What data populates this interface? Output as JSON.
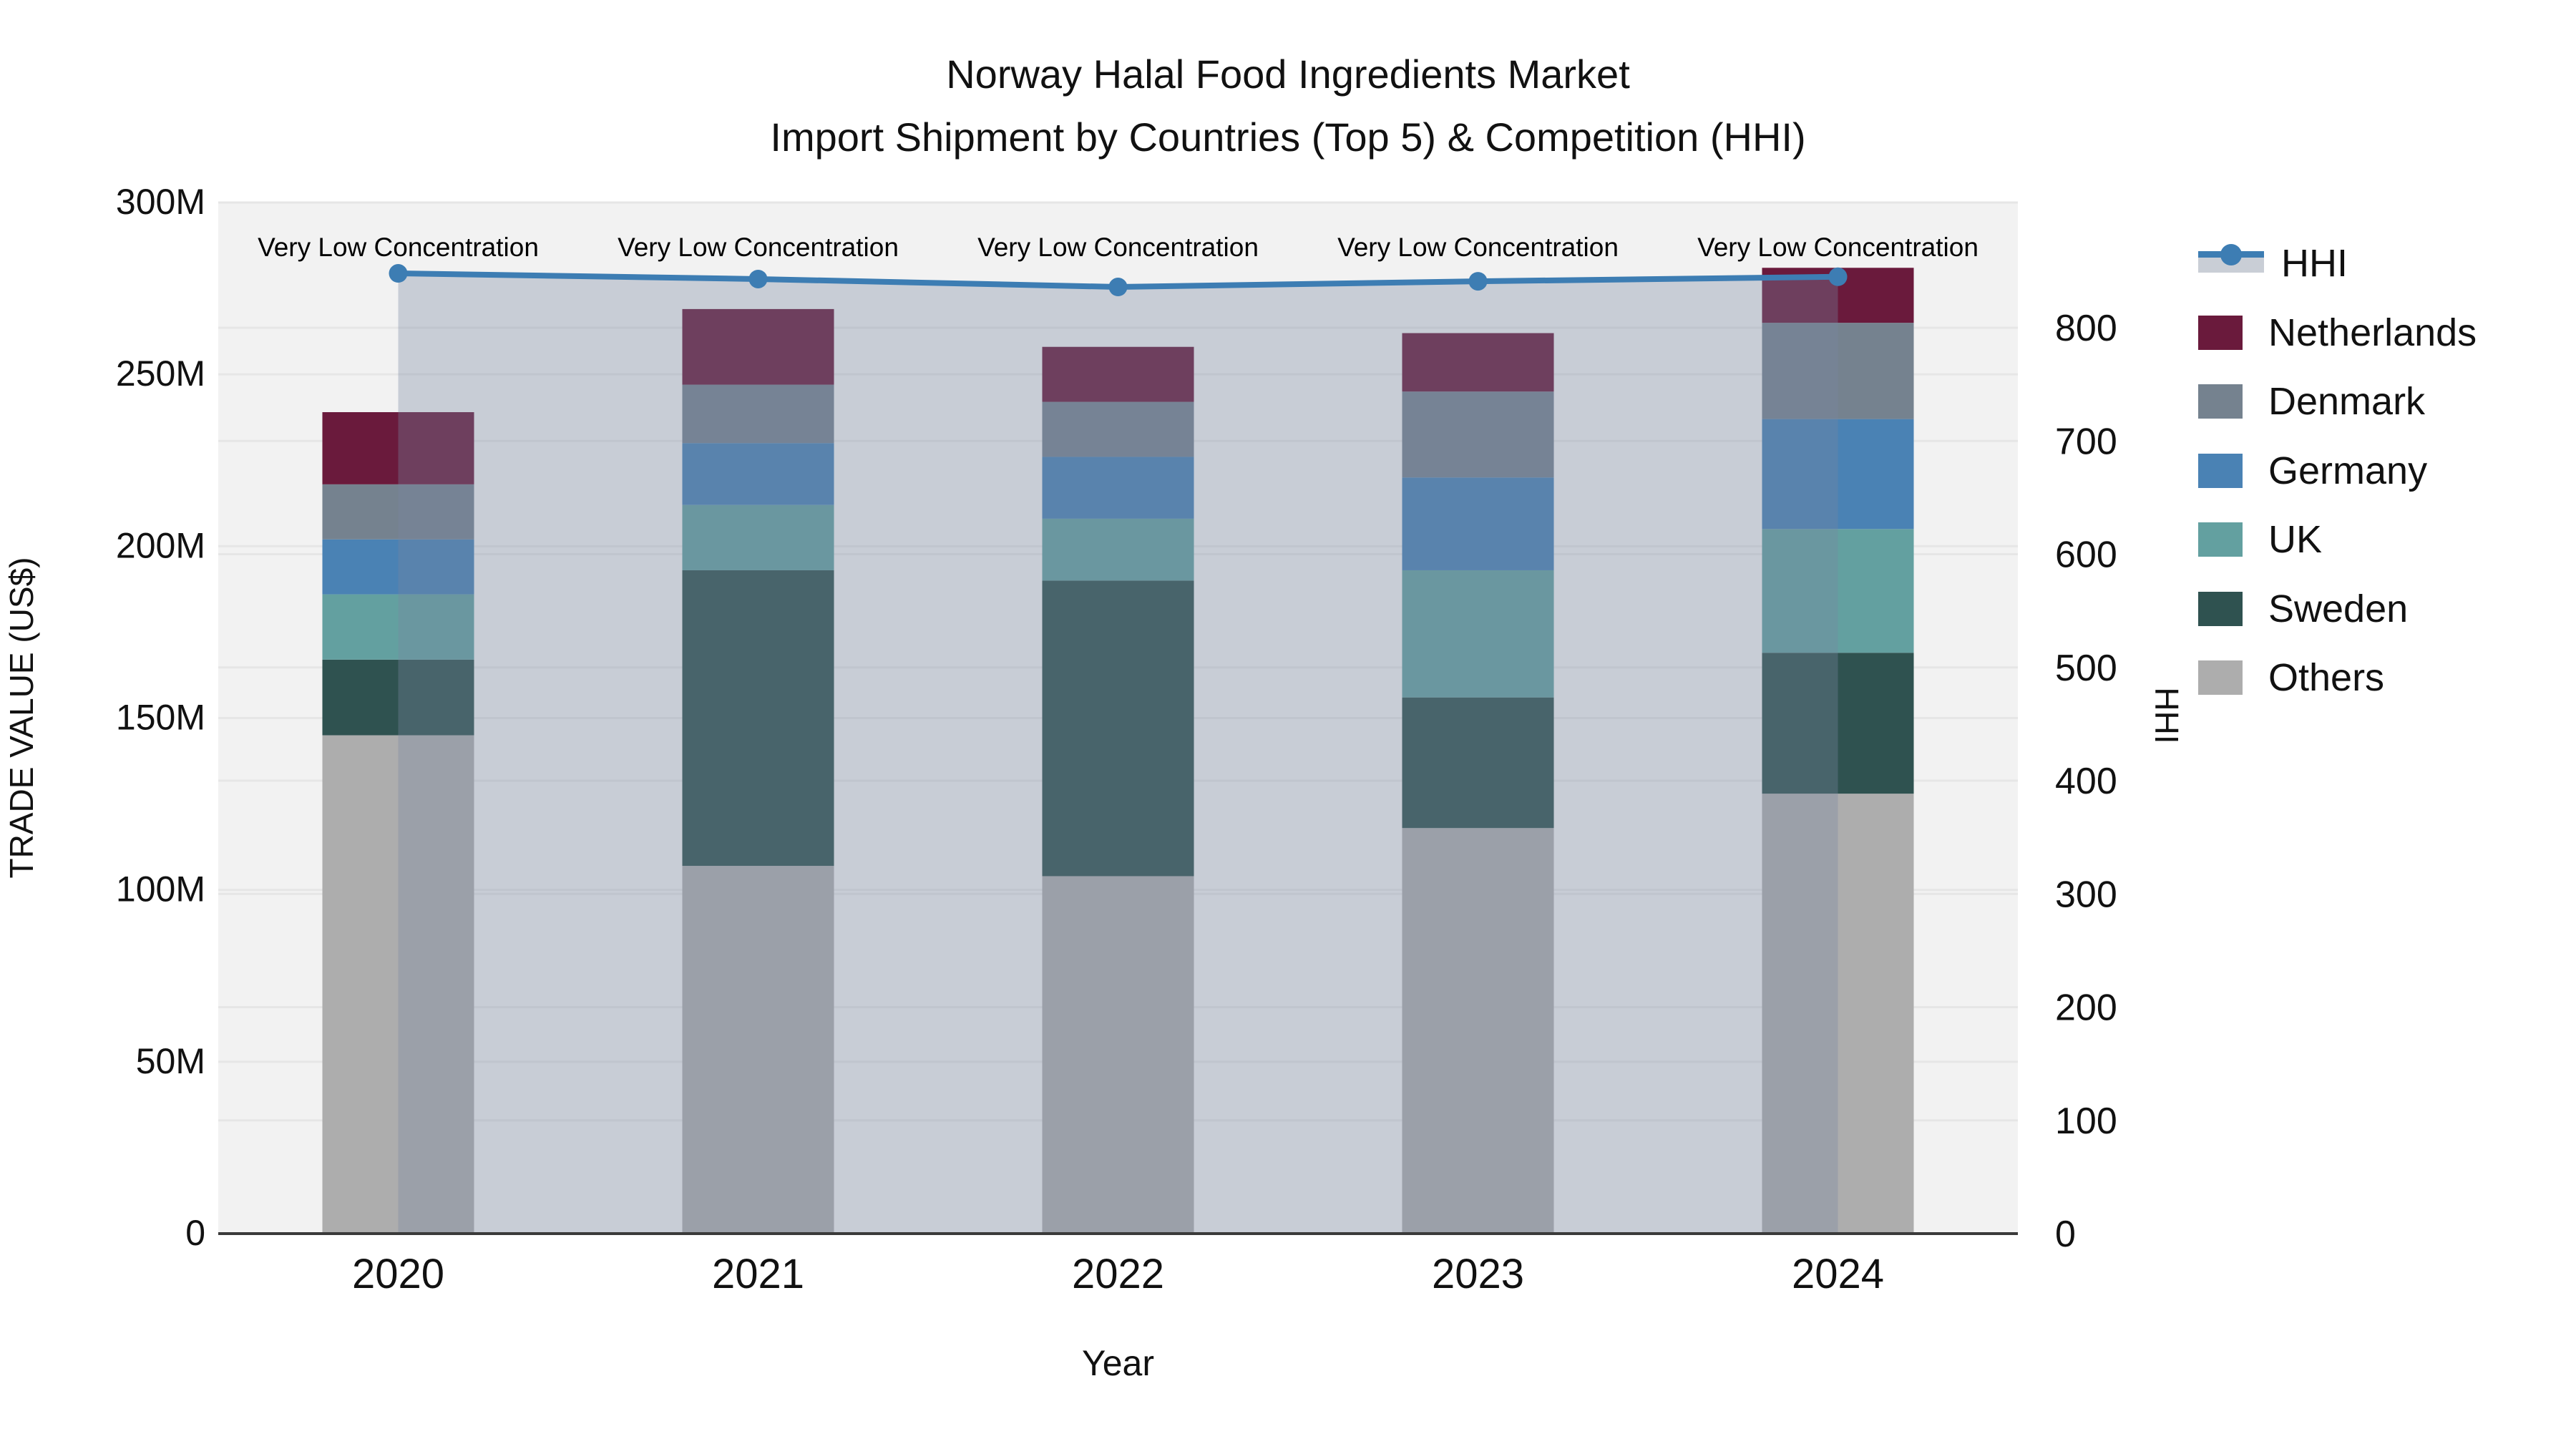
{
  "title": {
    "line1": "Norway Halal Food Ingredients Market",
    "line2": "Import Shipment by Countries (Top 5) & Competition (HHI)"
  },
  "annotation_text": "Very Low Concentration",
  "axes": {
    "x": {
      "label": "Year",
      "tick_labels": [
        "2020",
        "2021",
        "2022",
        "2023",
        "2024"
      ]
    },
    "y_left": {
      "label": "TRADE VALUE (US$)",
      "tick_labels": [
        "0",
        "50M",
        "100M",
        "150M",
        "200M",
        "250M",
        "300M"
      ],
      "tick_values": [
        0,
        50,
        100,
        150,
        200,
        250,
        300
      ],
      "max": 300
    },
    "y_right": {
      "label": "HHI",
      "tick_labels": [
        "0",
        "100",
        "200",
        "300",
        "400",
        "500",
        "600",
        "700",
        "800"
      ],
      "tick_values": [
        0,
        100,
        200,
        300,
        400,
        500,
        600,
        700,
        800
      ],
      "max": 800
    }
  },
  "legend": {
    "items": [
      {
        "label": "HHI",
        "swatch": "line"
      },
      {
        "label": "Netherlands",
        "swatch": "box",
        "color": "#6a1a3c"
      },
      {
        "label": "Denmark",
        "swatch": "box",
        "color": "#75828f"
      },
      {
        "label": "Germany",
        "swatch": "box",
        "color": "#4a82b4"
      },
      {
        "label": "UK",
        "swatch": "box",
        "color": "#63a0a0"
      },
      {
        "label": "Sweden",
        "swatch": "box",
        "color": "#2f5250"
      },
      {
        "label": "Others",
        "swatch": "box",
        "color": "#adadad"
      }
    ]
  },
  "chart_data": {
    "type": "bar",
    "subtype": "stacked-bars-with-line-area",
    "title": "Norway Halal Food Ingredients Market — Import Shipment by Countries (Top 5) & Competition (HHI)",
    "xlabel": "Year",
    "ylabel_left": "TRADE VALUE (US$)",
    "ylabel_right": "HHI",
    "categories": [
      "2020",
      "2021",
      "2022",
      "2023",
      "2024"
    ],
    "units": "millions US$",
    "ylim_left": [
      0,
      300
    ],
    "ylim_right_gridmax": 800,
    "grid": true,
    "legend_position": "right-outside",
    "stack_bottom_to_top": [
      "Others",
      "Sweden",
      "UK",
      "Germany",
      "Denmark",
      "Netherlands"
    ],
    "series": [
      {
        "name": "Netherlands",
        "type": "bar",
        "color": "#6a1a3c",
        "values": [
          21,
          22,
          16,
          17,
          16
        ]
      },
      {
        "name": "Denmark",
        "type": "bar",
        "color": "#75828f",
        "values": [
          16,
          17,
          16,
          25,
          28
        ]
      },
      {
        "name": "Germany",
        "type": "bar",
        "color": "#4a82b4",
        "values": [
          16,
          18,
          18,
          27,
          32
        ]
      },
      {
        "name": "UK",
        "type": "bar",
        "color": "#63a0a0",
        "values": [
          19,
          19,
          18,
          37,
          36
        ]
      },
      {
        "name": "Sweden",
        "type": "bar",
        "color": "#2f5250",
        "values": [
          22,
          86,
          86,
          38,
          41
        ]
      },
      {
        "name": "Others",
        "type": "bar",
        "color": "#adadad",
        "values": [
          145,
          107,
          104,
          118,
          128
        ]
      }
    ],
    "bar_totals": [
      239,
      269,
      258,
      262,
      281
    ],
    "line_series": {
      "name": "HHI",
      "type": "line",
      "axis": "right",
      "color": "#3d7db3",
      "area_fill": "rgba(120,135,160,0.34)",
      "values": [
        848,
        843,
        836,
        841,
        845
      ],
      "point_annotations": [
        "Very Low Concentration",
        "Very Low Concentration",
        "Very Low Concentration",
        "Very Low Concentration",
        "Very Low Concentration"
      ]
    },
    "colors": {
      "plot_background": "#f2f2f2",
      "page_background": "#ffffff",
      "gridline": "#e6e6e6",
      "axis_line": "#3a3a3a",
      "text": "#111111",
      "hhi_line": "#3d7db3",
      "hhi_area": "rgba(120,135,160,0.34)"
    }
  }
}
